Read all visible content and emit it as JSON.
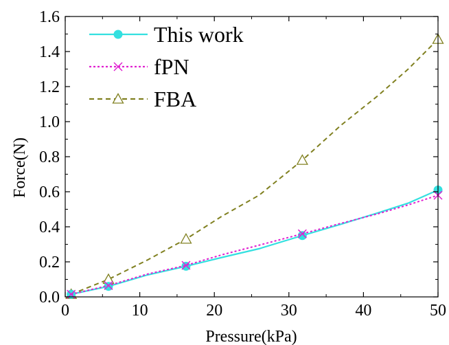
{
  "chart_data": {
    "type": "line",
    "title": "",
    "xlabel": "Pressure(kPa)",
    "ylabel": "Force(N)",
    "xlim": [
      0,
      50
    ],
    "ylim": [
      0,
      1.6
    ],
    "xticks": [
      0,
      10,
      20,
      30,
      40,
      50
    ],
    "xtick_labels": [
      "0",
      "10",
      "20",
      "30",
      "40",
      "50"
    ],
    "yticks": [
      0,
      0.2,
      0.4,
      0.6,
      0.8,
      1.0,
      1.2,
      1.4,
      1.6
    ],
    "ytick_labels": [
      "0.0",
      "0.2",
      "0.4",
      "0.6",
      "0.8",
      "1.0",
      "1.2",
      "1.4",
      "1.6"
    ],
    "grid": false,
    "legend_position": "top-left",
    "series": [
      {
        "name": "This work",
        "color": "#33e0e0",
        "line_style": "solid",
        "marker": "filled-circle",
        "curve": [
          [
            0.8,
            0.015
          ],
          [
            5.8,
            0.06
          ],
          [
            11,
            0.125
          ],
          [
            16.2,
            0.175
          ],
          [
            21,
            0.225
          ],
          [
            26,
            0.275
          ],
          [
            31.8,
            0.35
          ],
          [
            37,
            0.415
          ],
          [
            42,
            0.48
          ],
          [
            46,
            0.535
          ],
          [
            50,
            0.61
          ]
        ],
        "points": [
          [
            0.8,
            0.015
          ],
          [
            5.8,
            0.06
          ],
          [
            16.2,
            0.175
          ],
          [
            31.8,
            0.35
          ],
          [
            50,
            0.61
          ]
        ]
      },
      {
        "name": "fPN",
        "color": "#e020d0",
        "line_style": "dotted",
        "marker": "x",
        "curve": [
          [
            0.8,
            0.015
          ],
          [
            5.8,
            0.065
          ],
          [
            11,
            0.13
          ],
          [
            16.2,
            0.18
          ],
          [
            21,
            0.24
          ],
          [
            26,
            0.295
          ],
          [
            31.8,
            0.36
          ],
          [
            37,
            0.42
          ],
          [
            42,
            0.475
          ],
          [
            46,
            0.525
          ],
          [
            50,
            0.58
          ]
        ],
        "points": [
          [
            0.8,
            0.015
          ],
          [
            5.8,
            0.065
          ],
          [
            16.2,
            0.18
          ],
          [
            31.8,
            0.36
          ],
          [
            50,
            0.58
          ]
        ]
      },
      {
        "name": "FBA",
        "color": "#808020",
        "line_style": "dashed",
        "marker": "open-triangle",
        "curve": [
          [
            0.8,
            0.015
          ],
          [
            5.8,
            0.1
          ],
          [
            11,
            0.21
          ],
          [
            16.2,
            0.33
          ],
          [
            21,
            0.46
          ],
          [
            26,
            0.58
          ],
          [
            31.8,
            0.78
          ],
          [
            37,
            0.98
          ],
          [
            42,
            1.15
          ],
          [
            46,
            1.3
          ],
          [
            50,
            1.47
          ]
        ],
        "points": [
          [
            0.8,
            0.015
          ],
          [
            5.8,
            0.1
          ],
          [
            16.2,
            0.33
          ],
          [
            31.8,
            0.78
          ],
          [
            50,
            1.47
          ]
        ]
      }
    ]
  }
}
